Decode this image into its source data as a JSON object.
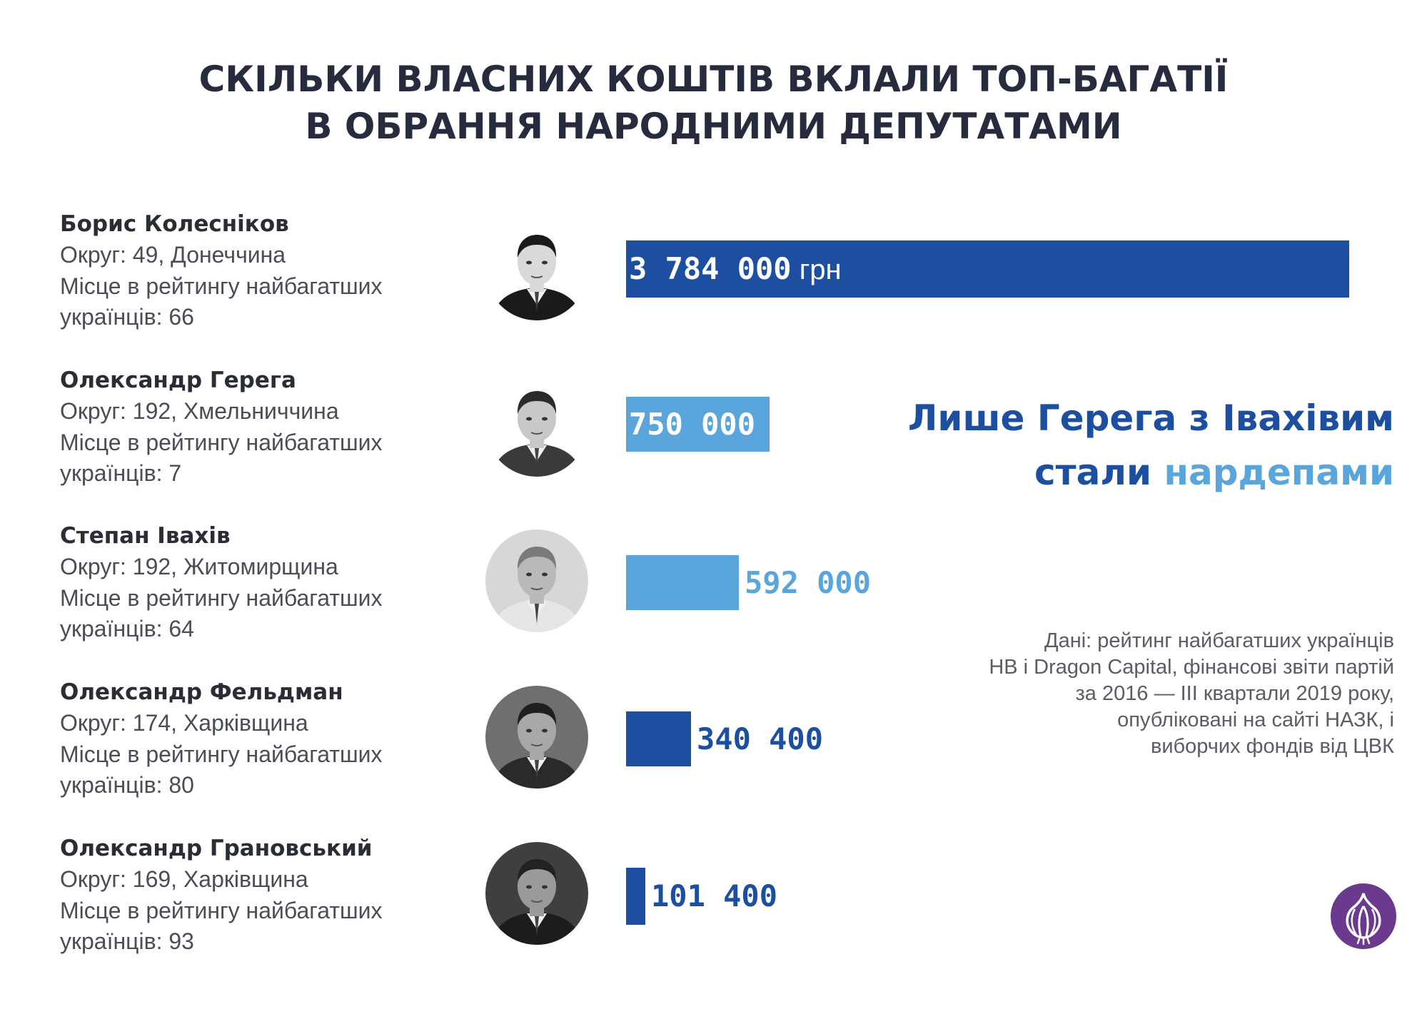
{
  "title": {
    "line1": "СКІЛЬКИ ВЛАСНИХ КОШТІВ ВКЛАЛИ ТОП-БАГАТІЇ",
    "line2": "В ОБРАННЯ НАРОДНИМИ ДЕПУТАТАМИ"
  },
  "people": [
    {
      "name": "Борис Колесніков",
      "district": "Округ: 49, Донеччина",
      "rank_line1": "Місце в рейтингу найбагатших",
      "rank_line2": "українців: 66"
    },
    {
      "name": "Олександр Герега",
      "district": "Округ: 192, Хмельниччина",
      "rank_line1": "Місце в рейтингу найбагатших",
      "rank_line2": "українців: 7"
    },
    {
      "name": "Степан Івахів",
      "district": "Округ: 192, Житомирщина",
      "rank_line1": "Місце в рейтингу найбагатших",
      "rank_line2": "українців: 64"
    },
    {
      "name": "Олександр Фельдман",
      "district": "Округ: 174, Харківщина",
      "rank_line1": "Місце в рейтингу найбагатших",
      "rank_line2": "українців: 80"
    },
    {
      "name": "Олександр Грановський",
      "district": "Округ: 169, Харківщина",
      "rank_line1": "Місце в рейтингу найбагатших",
      "rank_line2": "українців: 93"
    }
  ],
  "chart_data": {
    "type": "bar",
    "orientation": "horizontal",
    "categories": [
      "Борис Колесніков",
      "Олександр Герега",
      "Степан Івахів",
      "Олександр Фельдман",
      "Олександр Грановський"
    ],
    "values": [
      3784000,
      750000,
      592000,
      340400,
      101400
    ],
    "value_labels": [
      "3 784 000",
      "750 000",
      "592 000",
      "340 400",
      "101 400"
    ],
    "unit": "грн",
    "colors": [
      "#1d4fa1",
      "#5aa6dc",
      "#5aa6dc",
      "#1d4fa1",
      "#1d4fa1"
    ],
    "label_inside": [
      true,
      true,
      false,
      false,
      false
    ],
    "title": "СКІЛЬКИ ВЛАСНИХ КОШТІВ ВКЛАЛИ ТОП-БАГАТІЇ В ОБРАННЯ НАРОДНИМИ ДЕПУТАТАМИ",
    "xlim": [
      0,
      3784000
    ],
    "grid": false
  },
  "callout": {
    "line1": "Лише Герега з Івахівим",
    "line2_dark": "стали ",
    "line2_light": "нардепами"
  },
  "source": {
    "lines": [
      "Дані: рейтинг найбагатших українців",
      "НВ і Dragon Capital, фінансові звіти партій",
      "за 2016 — III квартали 2019 року,",
      "опубліковані на сайті НАЗК, і",
      "виборчих фондів від ЦВК"
    ]
  },
  "colors": {
    "dark_blue": "#1d4fa1",
    "light_blue": "#5aa6dc",
    "title": "#262c3d",
    "logo": "#6b3a8e"
  },
  "icons": {
    "logo": "garlic-logo-icon"
  }
}
